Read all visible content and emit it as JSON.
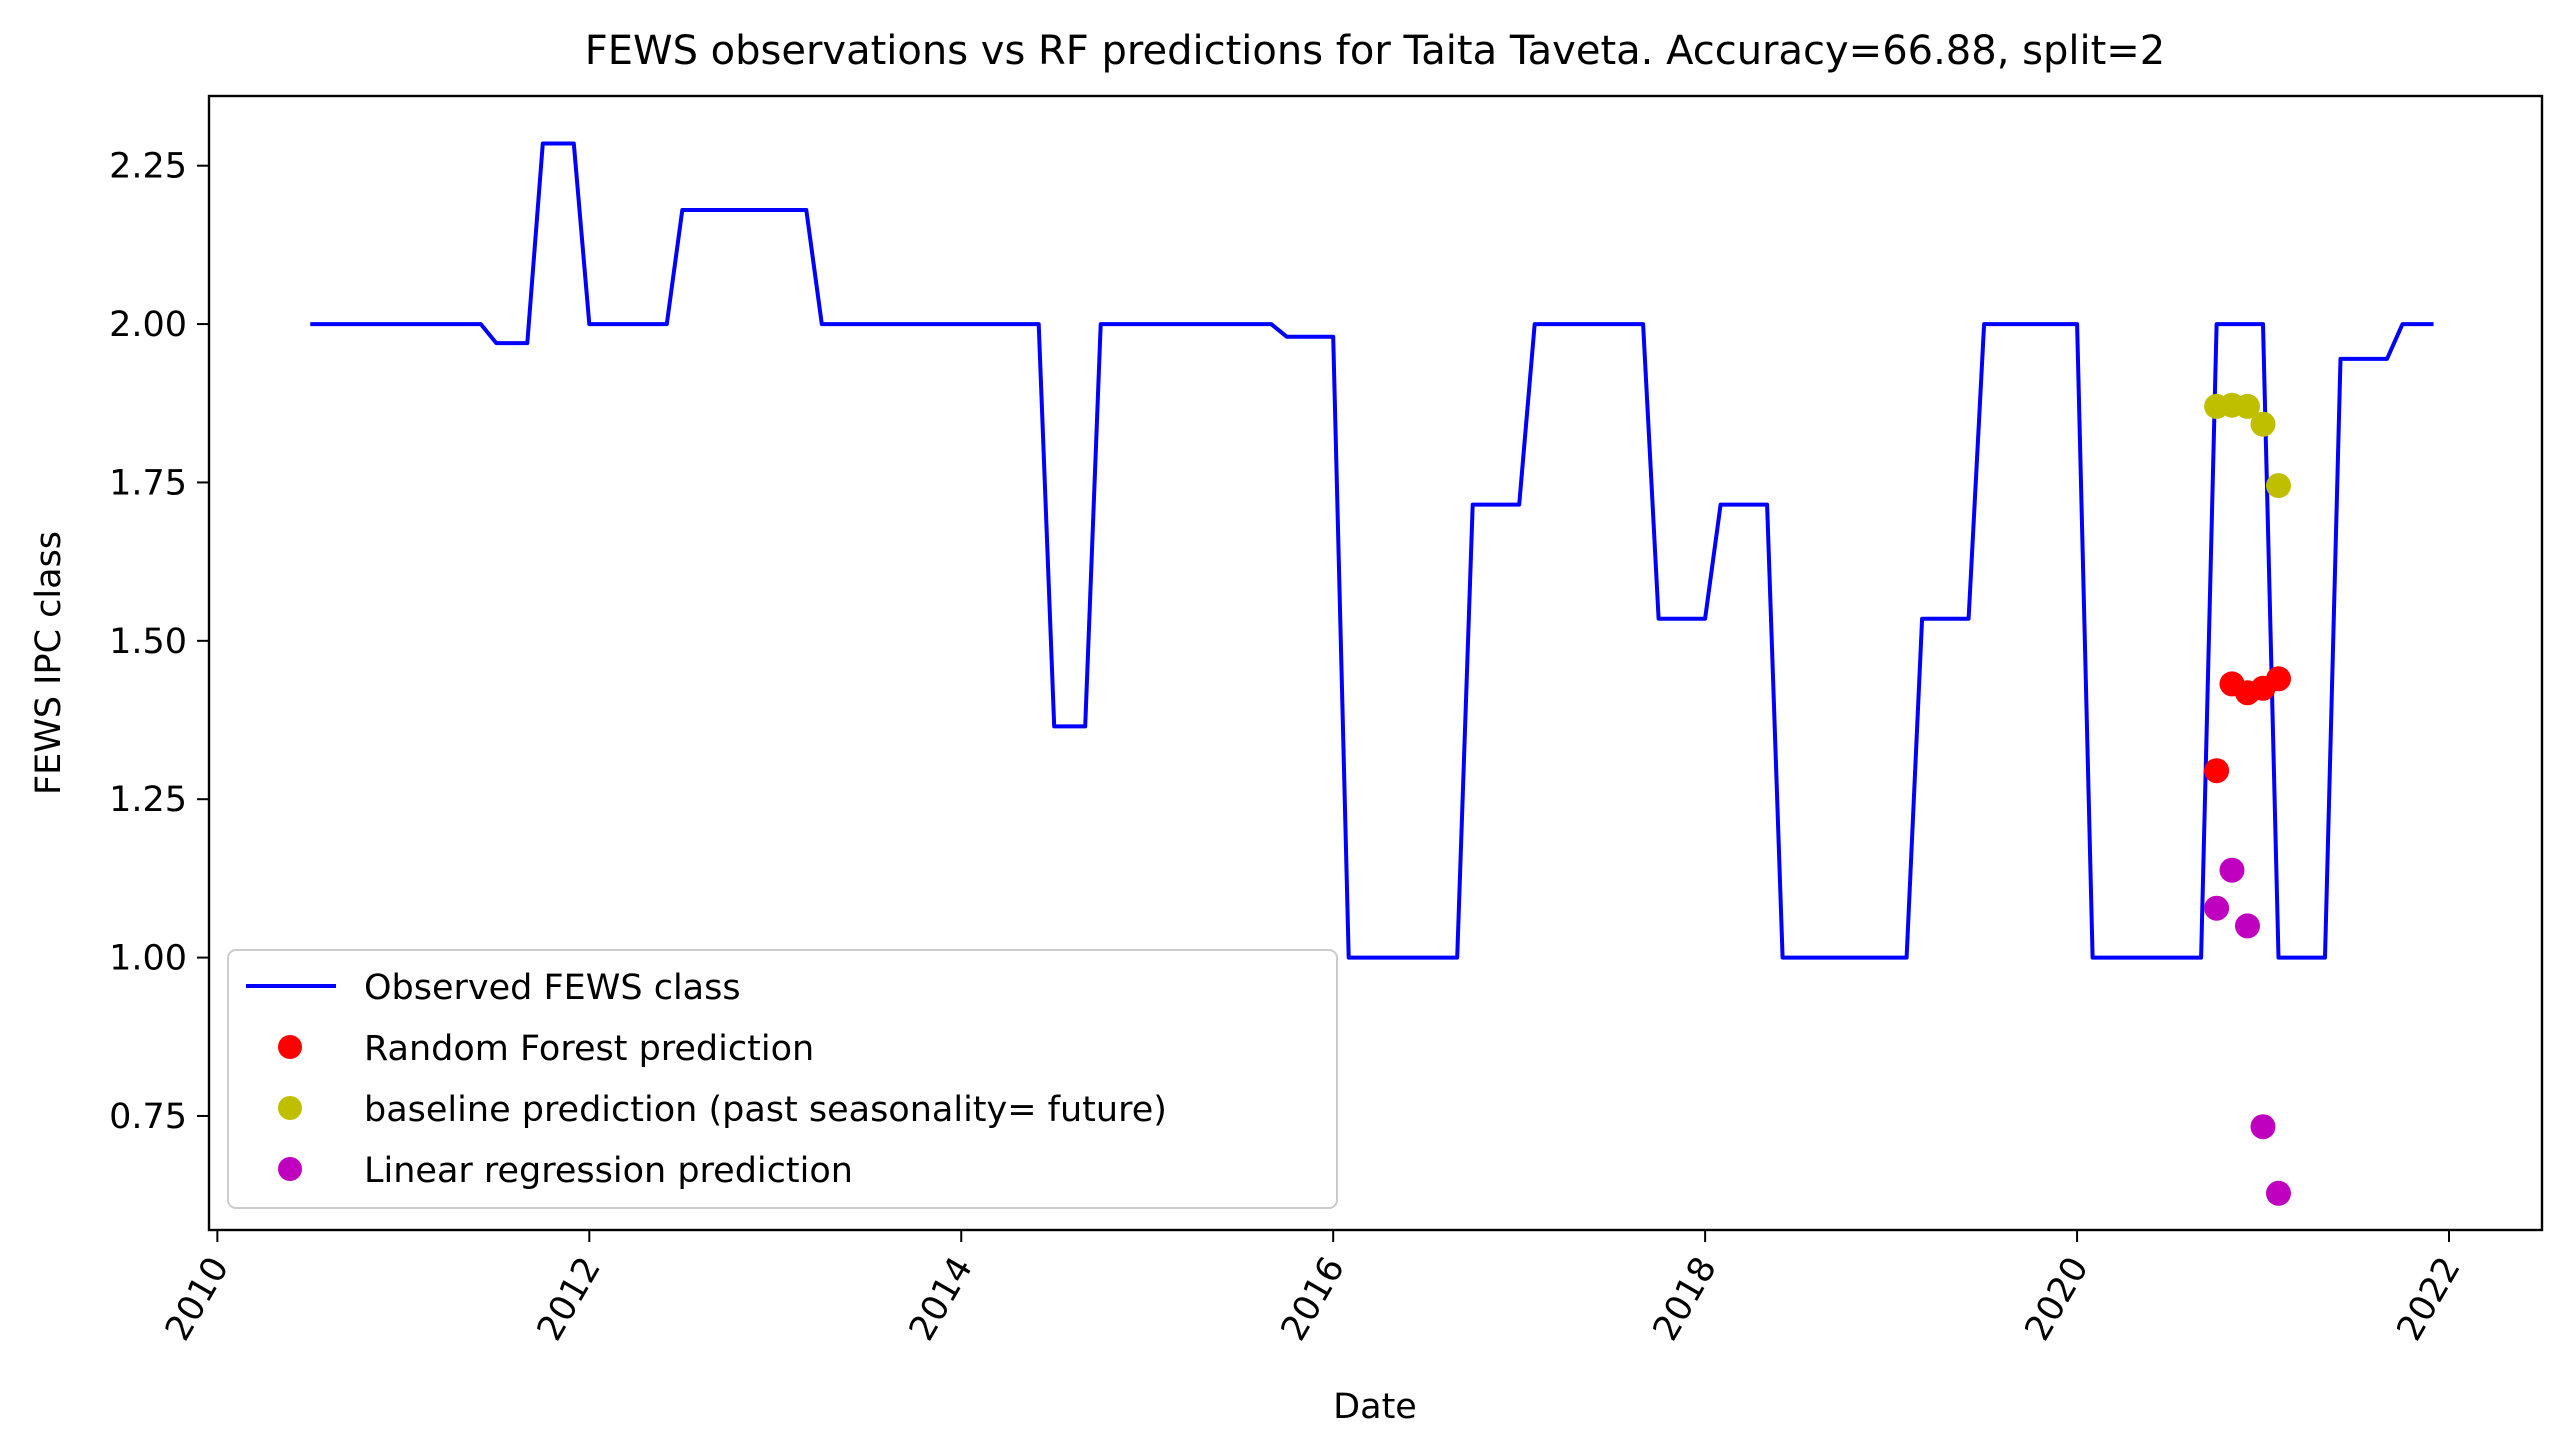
{
  "chart_data": {
    "type": "line",
    "title": "FEWS observations vs RF predictions for Taita Taveta. Accuracy=66.88, split=2",
    "xlabel": "Date",
    "ylabel": "FEWS IPC class",
    "xlim": [
      "2009-12-15",
      "2022-07-01"
    ],
    "ylim": [
      0.57,
      2.36
    ],
    "x_ticks": [
      "2010",
      "2012",
      "2014",
      "2016",
      "2018",
      "2020",
      "2022"
    ],
    "y_ticks": [
      "0.75",
      "1.00",
      "1.25",
      "1.50",
      "1.75",
      "2.00",
      "2.25"
    ],
    "grid": false,
    "legend_position": "lower-left",
    "colors": {
      "observed": "#0000ff",
      "random_forest": "#ff0000",
      "baseline": "#bfbf00",
      "linear_regression": "#bf00bf"
    },
    "series": [
      {
        "name": "Observed FEWS class",
        "kind": "line",
        "color_key": "observed",
        "points": [
          [
            "2010-07-01",
            2.0
          ],
          [
            "2011-06-01",
            2.0
          ],
          [
            "2011-07-01",
            1.97
          ],
          [
            "2011-09-01",
            1.97
          ],
          [
            "2011-10-01",
            2.285
          ],
          [
            "2011-12-01",
            2.285
          ],
          [
            "2012-01-01",
            2.0
          ],
          [
            "2012-06-01",
            2.0
          ],
          [
            "2012-07-01",
            2.18
          ],
          [
            "2013-03-01",
            2.18
          ],
          [
            "2013-04-01",
            2.0
          ],
          [
            "2014-06-01",
            2.0
          ],
          [
            "2014-07-01",
            1.365
          ],
          [
            "2014-09-01",
            1.365
          ],
          [
            "2014-10-01",
            2.0
          ],
          [
            "2015-09-01",
            2.0
          ],
          [
            "2015-10-01",
            1.98
          ],
          [
            "2016-01-01",
            1.98
          ],
          [
            "2016-02-01",
            1.0
          ],
          [
            "2016-09-01",
            1.0
          ],
          [
            "2016-10-01",
            1.715
          ],
          [
            "2017-01-01",
            1.715
          ],
          [
            "2017-02-01",
            2.0
          ],
          [
            "2017-09-01",
            2.0
          ],
          [
            "2017-10-01",
            1.535
          ],
          [
            "2018-01-01",
            1.535
          ],
          [
            "2018-02-01",
            1.715
          ],
          [
            "2018-05-01",
            1.715
          ],
          [
            "2018-06-01",
            1.0
          ],
          [
            "2019-02-01",
            1.0
          ],
          [
            "2019-03-01",
            1.535
          ],
          [
            "2019-06-01",
            1.535
          ],
          [
            "2019-07-01",
            2.0
          ],
          [
            "2020-01-01",
            2.0
          ],
          [
            "2020-02-01",
            1.0
          ],
          [
            "2020-09-01",
            1.0
          ],
          [
            "2020-10-01",
            2.0
          ],
          [
            "2021-01-01",
            2.0
          ],
          [
            "2021-02-01",
            1.0
          ],
          [
            "2021-05-01",
            1.0
          ],
          [
            "2021-06-01",
            1.945
          ],
          [
            "2021-09-01",
            1.945
          ],
          [
            "2021-10-01",
            2.0
          ],
          [
            "2021-12-01",
            2.0
          ]
        ]
      },
      {
        "name": "Random Forest prediction",
        "kind": "scatter",
        "color_key": "random_forest",
        "points": [
          [
            "2020-10-01",
            1.295
          ],
          [
            "2020-11-01",
            1.432
          ],
          [
            "2020-12-01",
            1.418
          ],
          [
            "2021-01-01",
            1.425
          ],
          [
            "2021-02-01",
            1.44
          ]
        ]
      },
      {
        "name": "baseline prediction (past seasonality= future)",
        "kind": "scatter",
        "color_key": "baseline",
        "points": [
          [
            "2020-10-01",
            1.87
          ],
          [
            "2020-11-01",
            1.872
          ],
          [
            "2020-12-01",
            1.87
          ],
          [
            "2021-01-01",
            1.842
          ],
          [
            "2021-02-01",
            1.745
          ]
        ]
      },
      {
        "name": "Linear regression prediction",
        "kind": "scatter",
        "color_key": "linear_regression",
        "points": [
          [
            "2020-10-01",
            1.078
          ],
          [
            "2020-11-01",
            1.138
          ],
          [
            "2020-12-01",
            1.05
          ],
          [
            "2021-01-01",
            0.733
          ],
          [
            "2021-02-01",
            0.628
          ]
        ]
      }
    ]
  }
}
